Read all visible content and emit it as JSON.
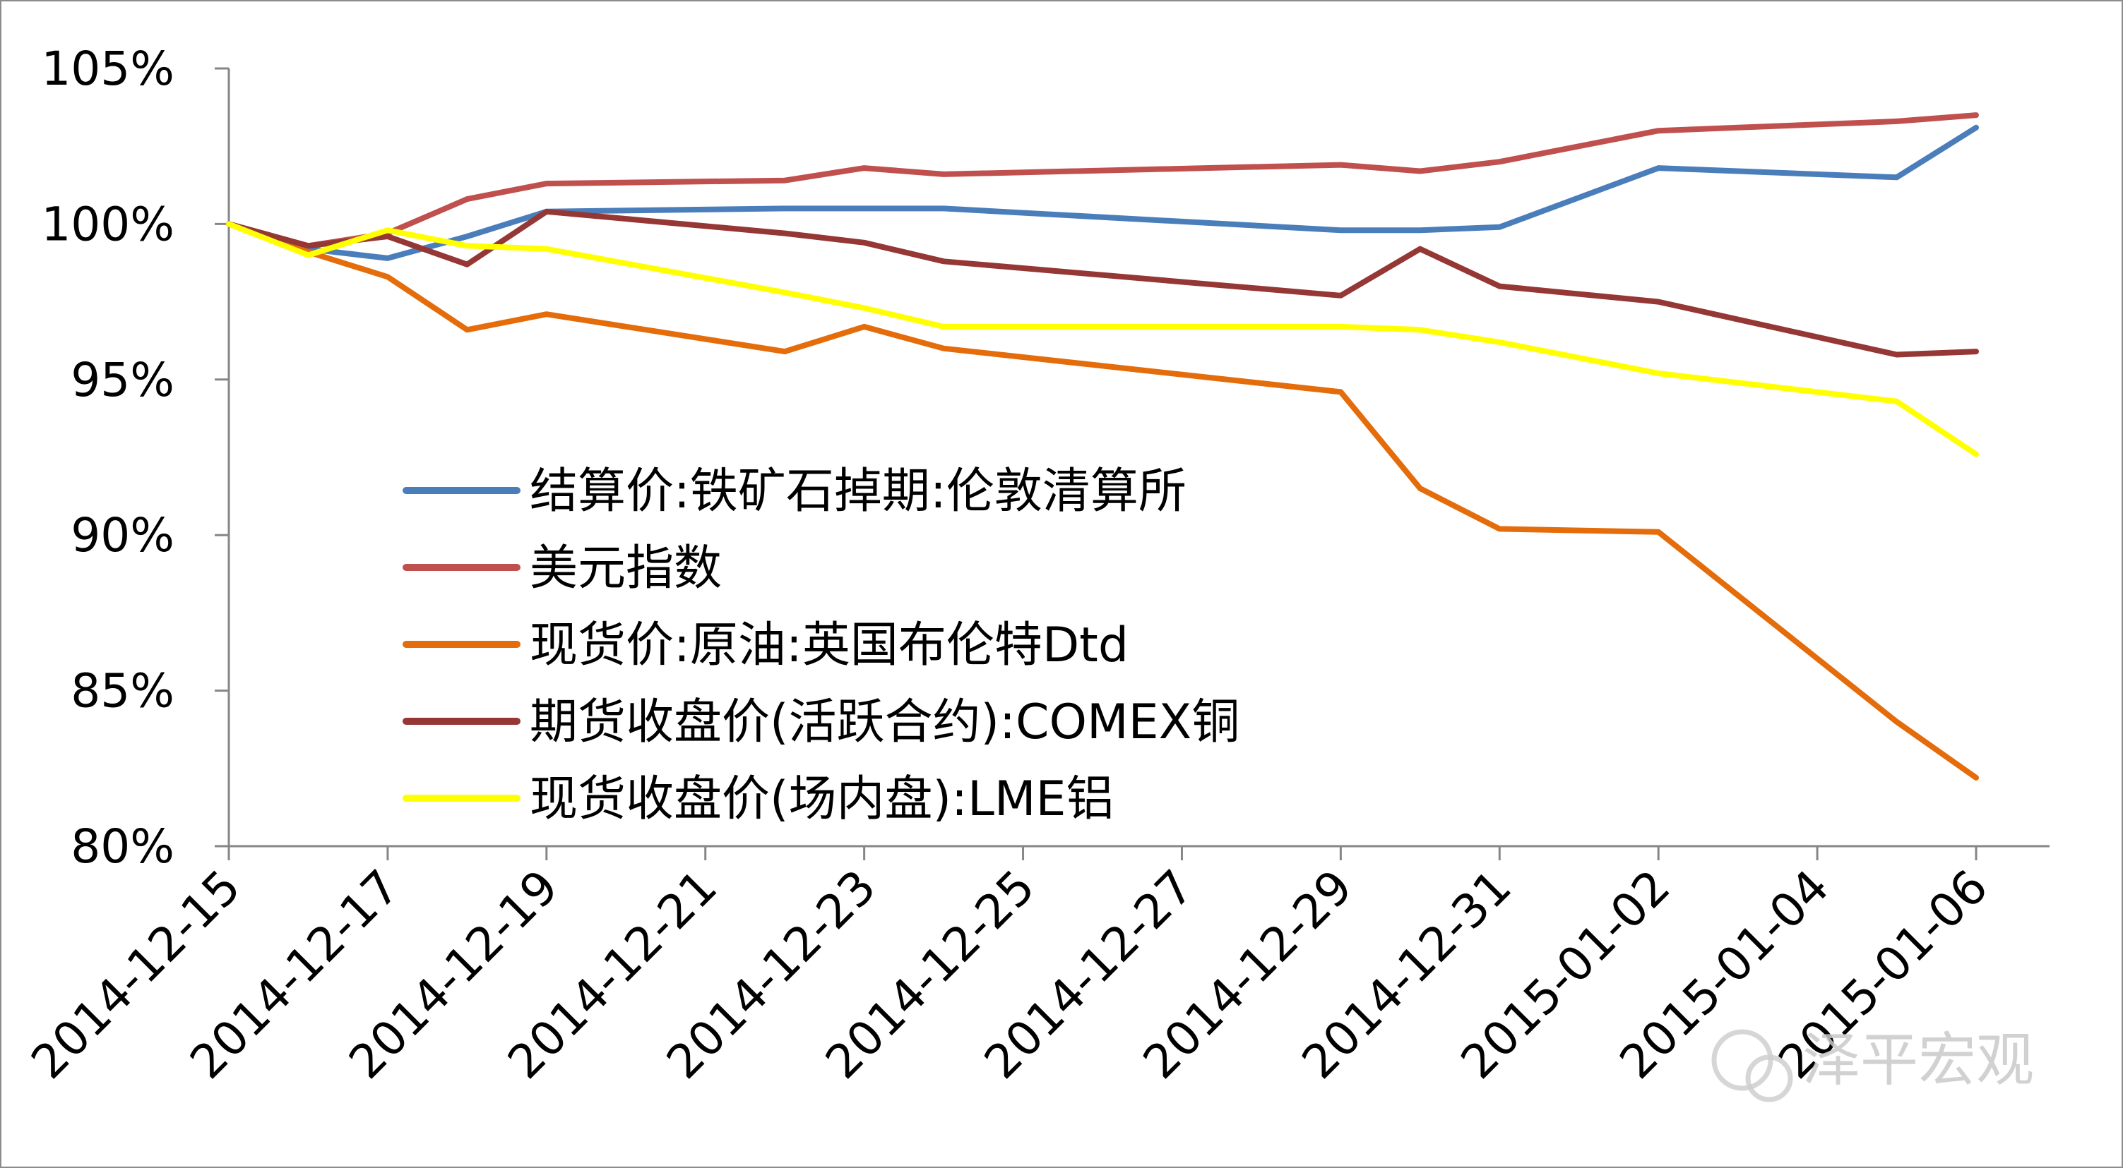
{
  "chart_data": {
    "type": "line",
    "title": "",
    "xlabel": "",
    "ylabel": "",
    "ylim": [
      80,
      105
    ],
    "y_ticks": [
      "80%",
      "85%",
      "90%",
      "95%",
      "100%",
      "105%"
    ],
    "x_tick_labels": [
      "2014-12-15",
      "2014-12-17",
      "2014-12-19",
      "2014-12-21",
      "2014-12-23",
      "2014-12-25",
      "2014-12-27",
      "2014-12-29",
      "2014-12-31",
      "2015-01-02",
      "2015-01-04",
      "2015-01-06"
    ],
    "x": [
      "2014-12-15",
      "2014-12-16",
      "2014-12-17",
      "2014-12-18",
      "2014-12-19",
      "2014-12-22",
      "2014-12-23",
      "2014-12-24",
      "2014-12-29",
      "2014-12-30",
      "2014-12-31",
      "2015-01-02",
      "2015-01-05",
      "2015-01-06"
    ],
    "series": [
      {
        "name": "结算价:铁矿石掉期:伦敦清算所",
        "color": "#4a7ebb",
        "values": [
          100.0,
          99.2,
          98.9,
          99.6,
          100.4,
          100.5,
          100.5,
          100.5,
          99.8,
          99.8,
          99.9,
          101.8,
          101.5,
          103.1
        ]
      },
      {
        "name": "美元指数",
        "color": "#c0504d",
        "values": [
          100.0,
          99.3,
          99.7,
          100.8,
          101.3,
          101.4,
          101.8,
          101.6,
          101.9,
          101.7,
          102.0,
          103.0,
          103.3,
          103.5
        ]
      },
      {
        "name": "现货价:原油:英国布伦特Dtd",
        "color": "#e46c0a",
        "values": [
          100.0,
          99.1,
          98.3,
          96.6,
          97.1,
          95.9,
          96.7,
          96.0,
          94.6,
          91.5,
          90.2,
          90.1,
          84.0,
          82.2
        ]
      },
      {
        "name": "期货收盘价(活跃合约):COMEX铜",
        "color": "#953735",
        "values": [
          100.0,
          99.3,
          99.6,
          98.7,
          100.4,
          99.7,
          99.4,
          98.8,
          97.7,
          99.2,
          98.0,
          97.5,
          95.8,
          95.9
        ]
      },
      {
        "name": "现货收盘价(场内盘):LME铝",
        "color": "#ffff00",
        "values": [
          100.0,
          99.0,
          99.8,
          99.3,
          99.2,
          97.8,
          97.3,
          96.7,
          96.7,
          96.6,
          96.2,
          95.2,
          94.3,
          92.6
        ]
      }
    ],
    "grid": false,
    "legend_position": "inside-center-left",
    "watermark": "泽平宏观"
  }
}
